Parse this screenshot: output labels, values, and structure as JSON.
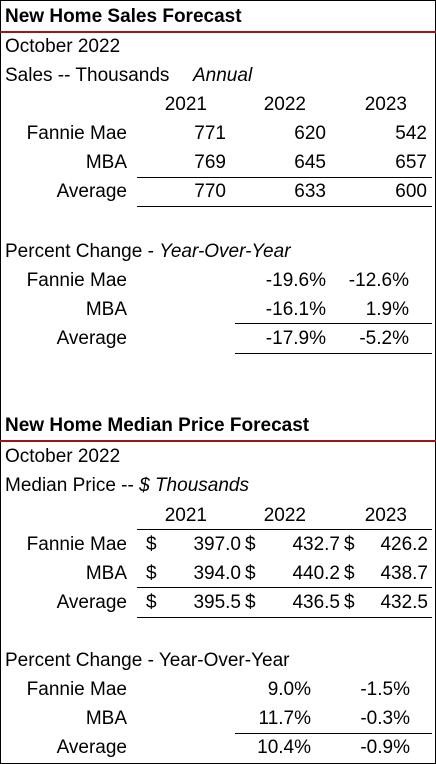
{
  "sales": {
    "title": "New Home Sales Forecast",
    "date": "October 2022",
    "units_label": "Sales -- Thousands",
    "units_note": "Annual",
    "years": [
      "2021",
      "2022",
      "2023"
    ],
    "rows": [
      {
        "label": "Fannie Mae",
        "values": [
          "771",
          "620",
          "542"
        ]
      },
      {
        "label": "MBA",
        "values": [
          "769",
          "645",
          "657"
        ]
      },
      {
        "label": "Average",
        "values": [
          "770",
          "633",
          "600"
        ]
      }
    ],
    "pct_label": "Percent Change - ",
    "pct_note": "Year-Over-Year",
    "pct_rows": [
      {
        "label": "Fannie Mae",
        "values": [
          "-19.6%",
          "-12.6%"
        ]
      },
      {
        "label": "MBA",
        "values": [
          "-16.1%",
          "1.9%"
        ]
      },
      {
        "label": "Average",
        "values": [
          "-17.9%",
          "-5.2%"
        ]
      }
    ]
  },
  "price": {
    "title": "New Home Median Price Forecast",
    "date": "October 2022",
    "units_label": "Median Price -- ",
    "units_note": "$ Thousands",
    "years": [
      "2021",
      "2022",
      "2023"
    ],
    "currency": "$",
    "rows": [
      {
        "label": "Fannie Mae",
        "values": [
          "397.0",
          "432.7",
          "426.2"
        ]
      },
      {
        "label": "MBA",
        "values": [
          "394.0",
          "440.2",
          "438.7"
        ]
      },
      {
        "label": "Average",
        "values": [
          "395.5",
          "436.5",
          "432.5"
        ]
      }
    ],
    "pct_label": "Percent Change - Year-Over-Year",
    "pct_rows": [
      {
        "label": "Fannie Mae",
        "values": [
          "9.0%",
          "-1.5%"
        ]
      },
      {
        "label": "MBA",
        "values": [
          "11.7%",
          "-0.3%"
        ]
      },
      {
        "label": "Average",
        "values": [
          "10.4%",
          "-0.9%"
        ]
      }
    ]
  },
  "colors": {
    "title_rule": "#a0151c",
    "text": "#000000",
    "background": "#ffffff"
  }
}
